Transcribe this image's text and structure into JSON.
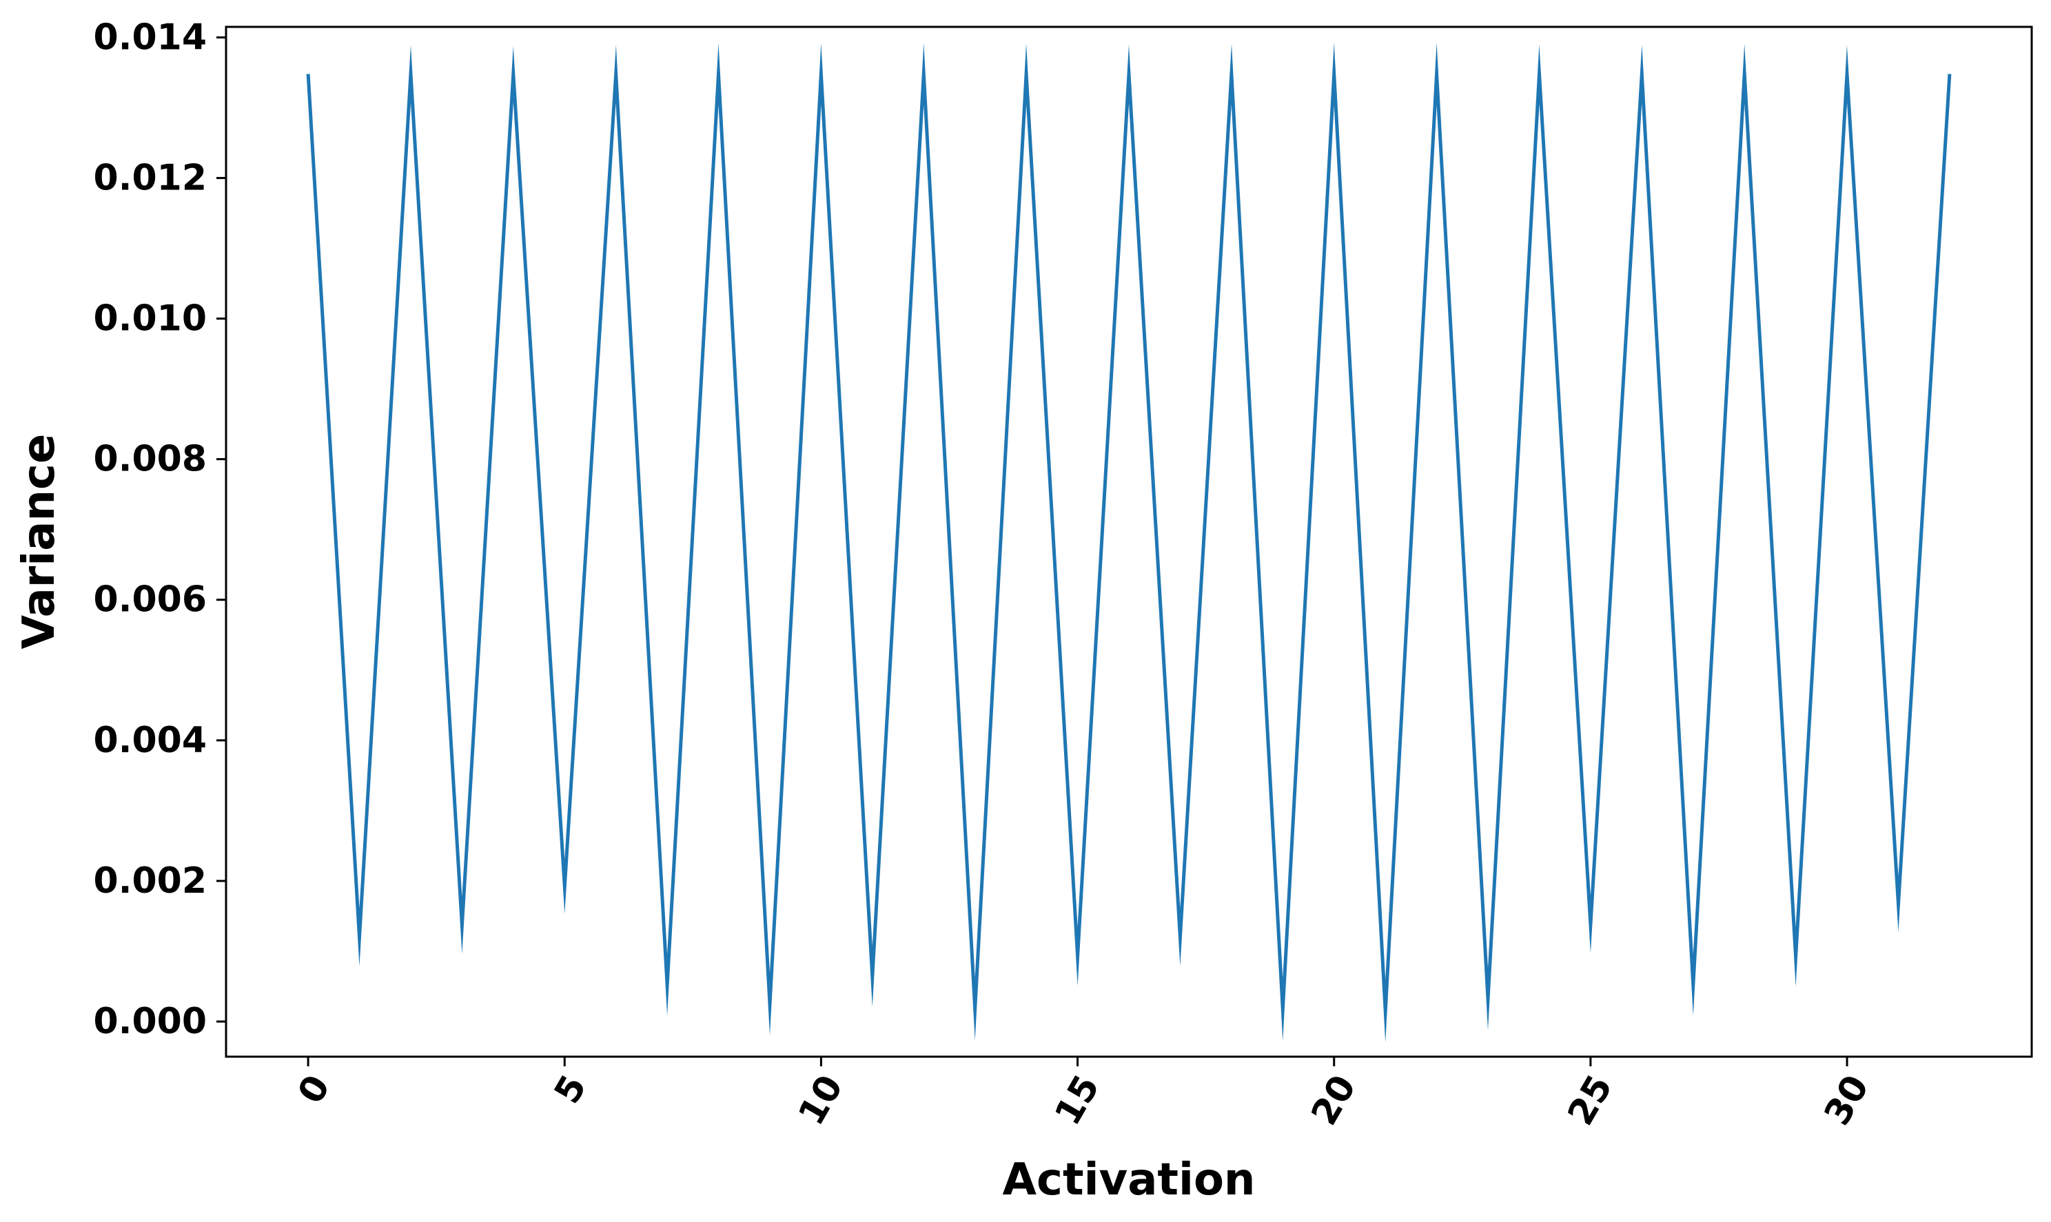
{
  "chart_data": {
    "type": "line",
    "title": "",
    "xlabel": "Activation",
    "ylabel": "Variance",
    "xlim": [
      -1.6,
      33.6
    ],
    "ylim": [
      -0.0005,
      0.01415
    ],
    "xticks": [
      0,
      5,
      10,
      15,
      20,
      25,
      30
    ],
    "xtick_labels": [
      "0",
      "5",
      "10",
      "15",
      "20",
      "25",
      "30"
    ],
    "yticks": [
      0.0,
      0.002,
      0.004,
      0.006,
      0.008,
      0.01,
      0.012,
      0.014
    ],
    "ytick_labels": [
      "0.000",
      "0.002",
      "0.004",
      "0.006",
      "0.008",
      "0.010",
      "0.012",
      "0.014"
    ],
    "grid": false,
    "legend": "none",
    "series": [
      {
        "color": "#1f77b4",
        "x": [
          0,
          1,
          2,
          3,
          4,
          5,
          6,
          7,
          8,
          9,
          10,
          11,
          12,
          13,
          14,
          15,
          16,
          17,
          18,
          19,
          20,
          21,
          22,
          23,
          24,
          25,
          26,
          27,
          28,
          29,
          30,
          31,
          32
        ],
        "values": [
          0.01348,
          0.0012,
          0.01348,
          0.00137,
          0.01348,
          0.00192,
          0.01348,
          0.00052,
          0.01348,
          0.00025,
          0.01348,
          0.00064,
          0.01348,
          0.00018,
          0.01348,
          0.00093,
          0.01348,
          0.0012,
          0.01348,
          0.00017,
          0.01348,
          0.00015,
          0.01348,
          0.00032,
          0.01348,
          0.00138,
          0.01348,
          0.00052,
          0.01348,
          0.00092,
          0.01348,
          0.00167,
          0.01348
        ]
      }
    ]
  }
}
